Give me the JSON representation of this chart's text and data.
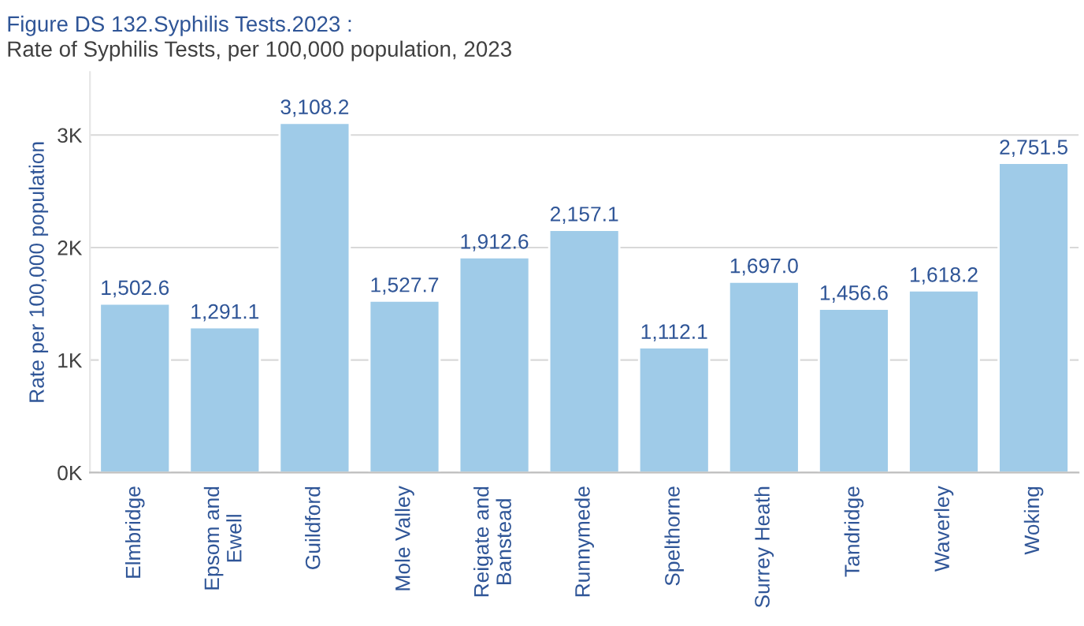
{
  "chart_data": {
    "type": "bar",
    "title": "Figure DS 132.Syphilis Tests.2023 :",
    "subtitle": "Rate of Syphilis Tests, per 100,000 population, 2023",
    "ylabel": "Rate per 100,000 population",
    "categories": [
      "Elmbridge",
      "Epsom and\nEwell",
      "Guildford",
      "Mole Valley",
      "Reigate and\nBanstead",
      "Runnymede",
      "Spelthorne",
      "Surrey Heath",
      "Tandridge",
      "Waverley",
      "Woking"
    ],
    "values": [
      1502.6,
      1291.1,
      3108.2,
      1527.7,
      1912.6,
      2157.1,
      1112.1,
      1697.0,
      1456.6,
      1618.2,
      2751.5
    ],
    "value_labels": [
      "1,502.6",
      "1,291.1",
      "3,108.2",
      "1,527.7",
      "1,912.6",
      "2,157.1",
      "1,112.1",
      "1,697.0",
      "1,456.6",
      "1,618.2",
      "2,751.5"
    ],
    "color": "#9fcbe8",
    "yticks": [
      {
        "value": 0,
        "label": "0K"
      },
      {
        "value": 1000,
        "label": "1K"
      },
      {
        "value": 2000,
        "label": "2K"
      },
      {
        "value": 3000,
        "label": "3K"
      }
    ],
    "ylim": [
      0,
      3560
    ],
    "grid": "y",
    "legend": false
  }
}
